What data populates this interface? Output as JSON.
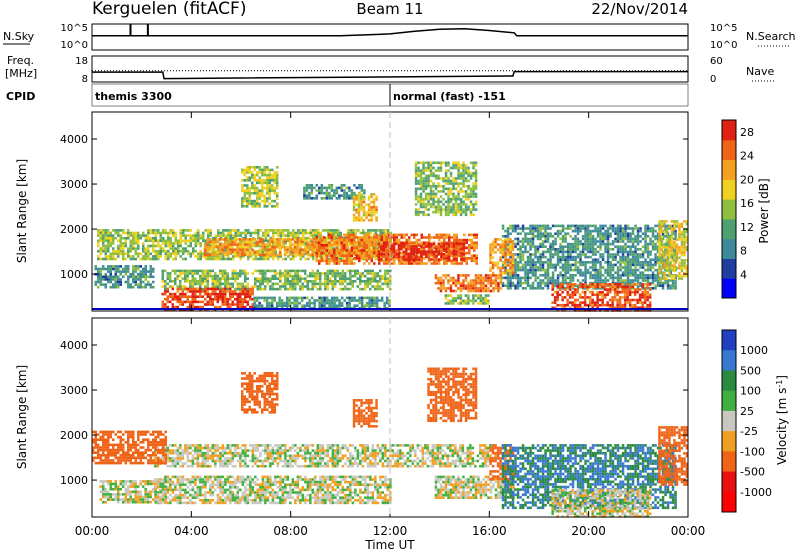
{
  "header": {
    "station": "Kerguelen (fitACF)",
    "beam": "Beam 11",
    "date": "22/Nov/2014"
  },
  "strip_labels": {
    "nsky": "N.Sky",
    "nsearch": "N.Search",
    "freq_line1": "Freq.",
    "freq_line2": "[MHz]",
    "nave": "Nave",
    "cpid": "CPID",
    "nsky_ticks": [
      "10^5",
      "10^0"
    ],
    "nsearch_ticks": [
      "10^5",
      "10^0"
    ],
    "freq_ticks": [
      "18",
      "8"
    ],
    "nave_ticks": [
      "60",
      "0"
    ]
  },
  "cpid_segments": [
    {
      "start": 0.0,
      "label": "themis 3300"
    },
    {
      "start": 12.0,
      "label": "normal (fast) -151"
    }
  ],
  "chart_data": [
    {
      "type": "line",
      "name": "noise",
      "x": [
        0,
        1,
        1.6,
        2,
        2.5,
        3,
        4,
        6,
        8,
        10,
        12,
        13,
        14,
        15,
        16,
        17,
        17.1,
        20,
        24
      ],
      "series": [
        {
          "name": "N.Sky",
          "values": [
            0.55,
            0.55,
            0.55,
            0.55,
            0.55,
            0.55,
            0.55,
            0.55,
            0.55,
            0.55,
            0.62,
            0.72,
            0.8,
            0.82,
            0.75,
            0.66,
            0.55,
            0.55,
            0.55
          ]
        }
      ],
      "spikes": [
        1.55,
        2.25
      ]
    },
    {
      "type": "line",
      "name": "frequency",
      "x": [
        0,
        2.85,
        2.9,
        16.95,
        17.0,
        24
      ],
      "series": [
        {
          "name": "Freq",
          "values": [
            11.8,
            11.8,
            9.3,
            10.3,
            12.0,
            12.0
          ]
        },
        {
          "name": "Nave",
          "values": [
            26,
            26,
            26,
            26,
            26,
            26
          ]
        }
      ]
    },
    {
      "type": "heatmap",
      "name": "power",
      "xlabel": "",
      "ylabel": "Slant Range [km]",
      "xlim": [
        0,
        24
      ],
      "ylim": [
        180,
        4600
      ],
      "yticks": [
        1000,
        2000,
        3000,
        4000
      ],
      "colorbar": {
        "label": "Power [dB]",
        "ticks": [
          4,
          8,
          12,
          16,
          20,
          24,
          28
        ],
        "range": [
          0,
          30
        ]
      },
      "bands": [
        {
          "x0": 0.2,
          "x1": 12,
          "r0": 1350,
          "r1": 2000,
          "v": 15
        },
        {
          "x0": 4.5,
          "x1": 12,
          "r0": 1400,
          "r1": 1800,
          "v": 22
        },
        {
          "x0": 9.0,
          "x1": 15.5,
          "r0": 1250,
          "r1": 1900,
          "v": 24
        },
        {
          "x0": 11.5,
          "x1": 15.0,
          "r0": 1300,
          "r1": 1700,
          "v": 28
        },
        {
          "x0": 0.1,
          "x1": 2.5,
          "r0": 700,
          "r1": 1200,
          "v": 10
        },
        {
          "x0": 2.8,
          "x1": 12.0,
          "r0": 650,
          "r1": 1100,
          "v": 14
        },
        {
          "x0": 2.8,
          "x1": 6.5,
          "r0": 200,
          "r1": 700,
          "v": 27
        },
        {
          "x0": 6.5,
          "x1": 12.0,
          "r0": 250,
          "r1": 500,
          "v": 10
        },
        {
          "x0": 13.8,
          "x1": 16.5,
          "r0": 650,
          "r1": 1000,
          "v": 24
        },
        {
          "x0": 14.2,
          "x1": 16.0,
          "r0": 350,
          "r1": 550,
          "v": 14
        },
        {
          "x0": 16.5,
          "x1": 23.5,
          "r0": 700,
          "r1": 2100,
          "v": 10
        },
        {
          "x0": 18.5,
          "x1": 22.5,
          "r0": 200,
          "r1": 800,
          "v": 26
        },
        {
          "x0": 22.8,
          "x1": 24.0,
          "r0": 900,
          "r1": 2200,
          "v": 18
        },
        {
          "x0": 6.0,
          "x1": 7.5,
          "r0": 2500,
          "r1": 3400,
          "v": 16
        },
        {
          "x0": 8.5,
          "x1": 11.0,
          "r0": 2700,
          "r1": 3000,
          "v": 10
        },
        {
          "x0": 10.5,
          "x1": 11.5,
          "r0": 2200,
          "r1": 2800,
          "v": 20
        },
        {
          "x0": 13.0,
          "x1": 15.5,
          "r0": 2300,
          "r1": 3500,
          "v": 14
        },
        {
          "x0": 16.0,
          "x1": 17.0,
          "r0": 1000,
          "r1": 1800,
          "v": 22
        }
      ]
    },
    {
      "type": "heatmap",
      "name": "velocity",
      "xlabel": "Time UT",
      "ylabel": "Slant Range [km]",
      "xlim": [
        0,
        24
      ],
      "ylim": [
        180,
        4600
      ],
      "xticks": [
        "00:00",
        "04:00",
        "08:00",
        "12:00",
        "16:00",
        "20:00",
        "00:00"
      ],
      "yticks": [
        1000,
        2000,
        3000,
        4000
      ],
      "colorbar": {
        "label": "Velocity [m s^-1]",
        "ticks": [
          "1000",
          "500",
          "100",
          "25",
          "-25",
          "-100",
          "-500",
          "-1000"
        ]
      },
      "bands": [
        {
          "x0": 2.5,
          "x1": 16.0,
          "r0": 1300,
          "r1": 1800,
          "v": 0
        },
        {
          "x0": 0.0,
          "x1": 3.0,
          "r0": 1400,
          "r1": 2100,
          "v": -300
        },
        {
          "x0": 2.5,
          "x1": 12.0,
          "r0": 500,
          "r1": 1100,
          "v": 0
        },
        {
          "x0": 0.3,
          "x1": 3.0,
          "r0": 500,
          "r1": 1000,
          "v": 0
        },
        {
          "x0": 6.0,
          "x1": 7.5,
          "r0": 2500,
          "r1": 3400,
          "v": -300
        },
        {
          "x0": 10.5,
          "x1": 11.5,
          "r0": 2200,
          "r1": 2800,
          "v": -300
        },
        {
          "x0": 13.5,
          "x1": 15.5,
          "r0": 2300,
          "r1": 3500,
          "v": -300
        },
        {
          "x0": 13.8,
          "x1": 17.0,
          "r0": 600,
          "r1": 1100,
          "v": 0
        },
        {
          "x0": 16.0,
          "x1": 17.0,
          "r0": 1000,
          "r1": 1800,
          "v": -150
        },
        {
          "x0": 16.5,
          "x1": 23.5,
          "r0": 400,
          "r1": 1800,
          "v": 300
        },
        {
          "x0": 18.5,
          "x1": 22.5,
          "r0": 200,
          "r1": 800,
          "v": 0
        },
        {
          "x0": 22.8,
          "x1": 24.0,
          "r0": 900,
          "r1": 2200,
          "v": -300
        }
      ]
    }
  ],
  "colors": {
    "power_scale": [
      "#0000ff",
      "#1f3fa0",
      "#3d8a9a",
      "#4ea070",
      "#8fbf3f",
      "#f0d020",
      "#f5a020",
      "#f06418",
      "#e02010"
    ],
    "velocity_scale": [
      "#2040c0",
      "#3878d0",
      "#2a8a40",
      "#40b040",
      "#c8c8c0",
      "#f0a020",
      "#f06418",
      "#e81010",
      "#ff0000"
    ],
    "noon_line": "#c0c0c0"
  }
}
